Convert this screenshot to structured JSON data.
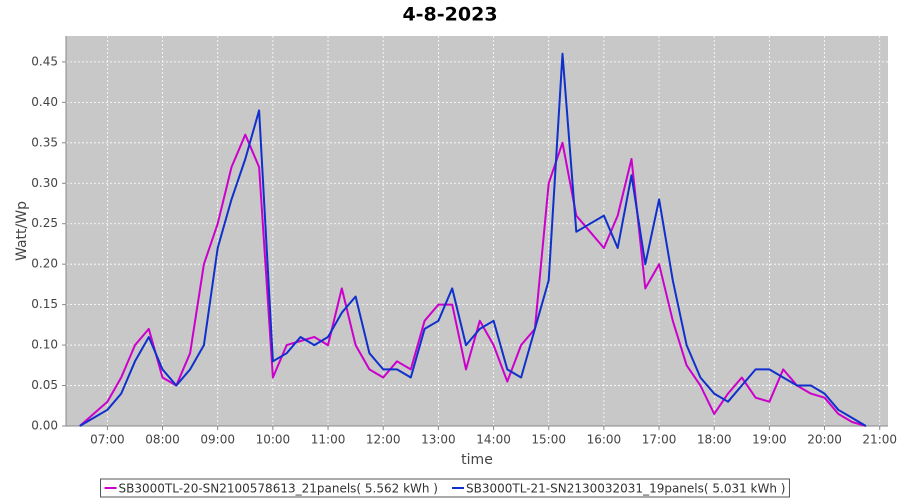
{
  "chart_data": {
    "type": "line",
    "title": "4-8-2023",
    "x_label": "time",
    "y_label": "Watt/Wp",
    "x": [
      6.5,
      6.75,
      7,
      7.25,
      7.5,
      7.75,
      8,
      8.25,
      8.5,
      8.75,
      9,
      9.25,
      9.5,
      9.75,
      10,
      10.25,
      10.5,
      10.75,
      11,
      11.25,
      11.5,
      11.75,
      12,
      12.25,
      12.5,
      12.75,
      13,
      13.25,
      13.5,
      13.75,
      14,
      14.25,
      14.5,
      14.75,
      15,
      15.25,
      15.5,
      15.75,
      16,
      16.25,
      16.5,
      16.75,
      17,
      17.25,
      17.5,
      17.75,
      18,
      18.25,
      18.5,
      18.75,
      19,
      19.25,
      19.5,
      19.75,
      20,
      20.25,
      20.5,
      20.75
    ],
    "series": [
      {
        "name": "SB3000TL-20-SN2100578613_21panels( 5.562 kWh )",
        "color": "#cc00cc",
        "values": [
          0,
          0.015,
          0.03,
          0.06,
          0.1,
          0.12,
          0.06,
          0.05,
          0.09,
          0.2,
          0.25,
          0.32,
          0.36,
          0.32,
          0.06,
          0.1,
          0.105,
          0.11,
          0.1,
          0.17,
          0.1,
          0.07,
          0.06,
          0.08,
          0.07,
          0.13,
          0.15,
          0.15,
          0.07,
          0.13,
          0.1,
          0.055,
          0.1,
          0.12,
          0.3,
          0.35,
          0.26,
          0.24,
          0.22,
          0.26,
          0.33,
          0.17,
          0.2,
          0.13,
          0.075,
          0.05,
          0.015,
          0.04,
          0.06,
          0.035,
          0.03,
          0.07,
          0.05,
          0.04,
          0.035,
          0.015,
          0.005,
          0
        ]
      },
      {
        "name": "SB3000TL-21-SN2130032031_19panels( 5.031 kWh )",
        "color": "#1030cc",
        "values": [
          0,
          0.01,
          0.02,
          0.04,
          0.08,
          0.11,
          0.07,
          0.05,
          0.07,
          0.1,
          0.22,
          0.28,
          0.33,
          0.39,
          0.08,
          0.09,
          0.11,
          0.1,
          0.11,
          0.14,
          0.16,
          0.09,
          0.07,
          0.07,
          0.06,
          0.12,
          0.13,
          0.17,
          0.1,
          0.12,
          0.13,
          0.07,
          0.06,
          0.12,
          0.18,
          0.46,
          0.24,
          0.25,
          0.26,
          0.22,
          0.31,
          0.2,
          0.28,
          0.18,
          0.1,
          0.06,
          0.04,
          0.03,
          0.05,
          0.07,
          0.07,
          0.06,
          0.05,
          0.05,
          0.04,
          0.02,
          0.01,
          0
        ]
      }
    ],
    "xlim": [
      6.25,
      21.15
    ],
    "ylim": [
      0,
      0.482
    ],
    "xticks": [
      {
        "value": 7,
        "label": "07:00"
      },
      {
        "value": 8,
        "label": "08:00"
      },
      {
        "value": 9,
        "label": "09:00"
      },
      {
        "value": 10,
        "label": "10:00"
      },
      {
        "value": 11,
        "label": "11:00"
      },
      {
        "value": 12,
        "label": "12:00"
      },
      {
        "value": 13,
        "label": "13:00"
      },
      {
        "value": 14,
        "label": "14:00"
      },
      {
        "value": 15,
        "label": "15:00"
      },
      {
        "value": 16,
        "label": "16:00"
      },
      {
        "value": 17,
        "label": "17:00"
      },
      {
        "value": 18,
        "label": "18:00"
      },
      {
        "value": 19,
        "label": "19:00"
      },
      {
        "value": 20,
        "label": "20:00"
      },
      {
        "value": 21,
        "label": "21:00"
      }
    ],
    "yticks": [
      {
        "value": 0,
        "label": "0.00"
      },
      {
        "value": 0.05,
        "label": "0.05"
      },
      {
        "value": 0.1,
        "label": "0.10"
      },
      {
        "value": 0.15,
        "label": "0.15"
      },
      {
        "value": 0.2,
        "label": "0.20"
      },
      {
        "value": 0.25,
        "label": "0.25"
      },
      {
        "value": 0.3,
        "label": "0.30"
      },
      {
        "value": 0.35,
        "label": "0.35"
      },
      {
        "value": 0.4,
        "label": "0.40"
      },
      {
        "value": 0.45,
        "label": "0.45"
      }
    ],
    "grid": true,
    "legend": "bottom"
  }
}
